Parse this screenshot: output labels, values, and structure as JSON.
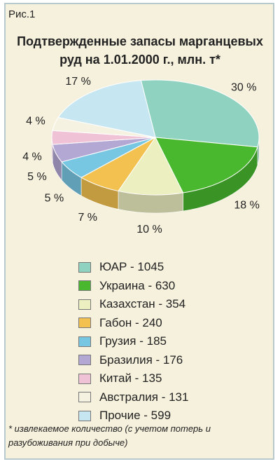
{
  "figure_label": "Рис.1",
  "title_lines": [
    "Подтвержденные запасы марганцевых",
    "руд на 1.01.2000 г., млн. т*"
  ],
  "chart_data": {
    "type": "pie",
    "categories": [
      "ЮАР",
      "Украина",
      "Казахстан",
      "Габон",
      "Грузия",
      "Бразилия",
      "Китай",
      "Австралия",
      "Прочие"
    ],
    "values": [
      1045,
      630,
      354,
      240,
      185,
      176,
      135,
      131,
      599
    ],
    "percent_labels": [
      "30 %",
      "18 %",
      "10 %",
      "7 %",
      "5 %",
      "5 %",
      "4 %",
      "4 %",
      "17 %"
    ],
    "colors": [
      "#8fd2c0",
      "#49b82e",
      "#ecefc0",
      "#f2c150",
      "#78c7e2",
      "#b3a7d4",
      "#f0c2d6",
      "#f5f2e2",
      "#c6e6f2"
    ],
    "legend_labels": [
      "ЮАР - 1045",
      "Украина - 630",
      "Казахстан - 354",
      "Габон - 240",
      "Грузия - 185",
      "Бразилия - 176",
      "Китай - 135",
      "Австралия - 131",
      "Прочие - 599"
    ]
  },
  "footnote": "* извлекаемое количество (с учетом потерь и разубоживания при добыче)"
}
